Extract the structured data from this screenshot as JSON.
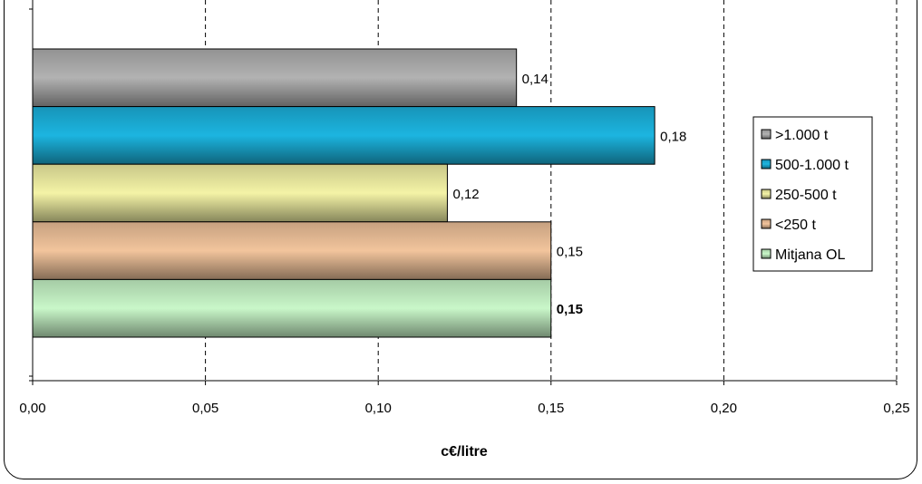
{
  "chart_data": {
    "type": "bar",
    "orientation": "horizontal",
    "xlabel": "c€/litre",
    "xlim": [
      0,
      0.25
    ],
    "x_ticks": [
      "0,00",
      "0,05",
      "0,10",
      "0,15",
      "0,20",
      "0,25"
    ],
    "grid": "vertical dashed",
    "legend_position": "right",
    "series": [
      {
        "name": ">1.000 t",
        "value": 0.14,
        "label": "0,14",
        "color": "#b2b2b2",
        "bold": false
      },
      {
        "name": "500-1.000 t",
        "value": 0.18,
        "label": "0,18",
        "color": "#1cb5e0",
        "bold": false
      },
      {
        "name": "250-500 t",
        "value": 0.12,
        "label": "0,12",
        "color": "#f4f3a6",
        "bold": false
      },
      {
        "name": "<250 t",
        "value": 0.15,
        "label": "0,15",
        "color": "#f2c49c",
        "bold": false
      },
      {
        "name": "Mitjana OL",
        "value": 0.15,
        "label": "0,15",
        "color": "#c9f7c9",
        "bold": true
      }
    ]
  }
}
